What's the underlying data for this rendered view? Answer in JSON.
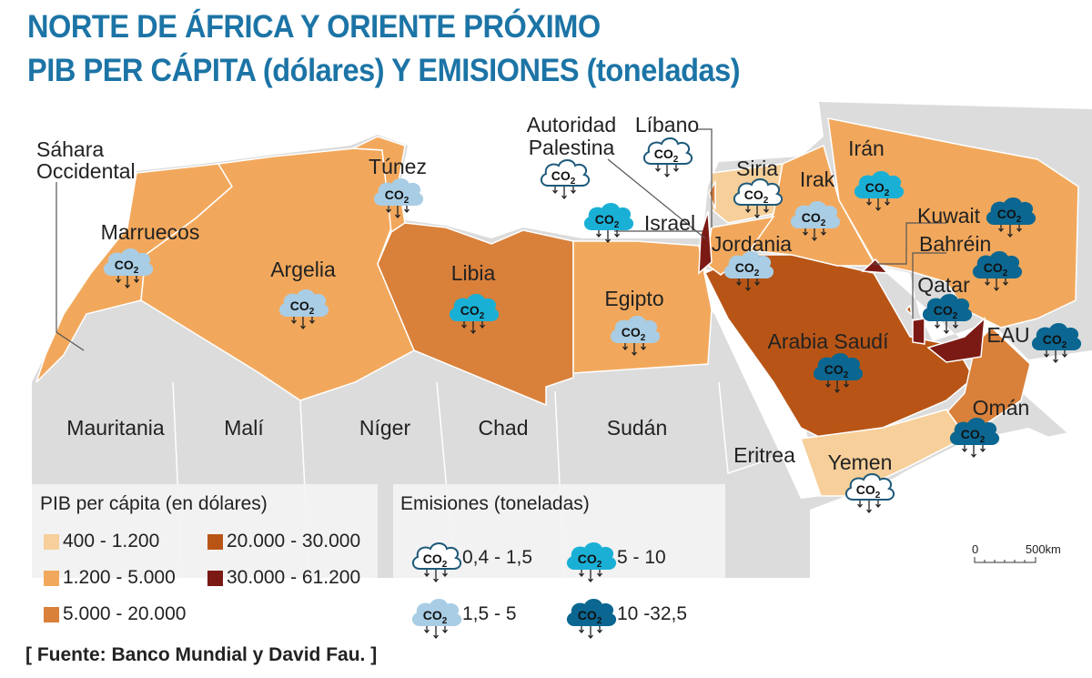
{
  "title": {
    "line1": "NORTE DE ÁFRICA Y ORIENTE PRÓXIMO",
    "line2": "PIB PER CÁPITA (dólares) Y EMISIONES (toneladas)"
  },
  "colors": {
    "title": "#1c74a6",
    "land": "#dcdcdc",
    "sea": "#ffffff"
  },
  "gdp_legend": {
    "title": "PIB per cápita (en dólares)",
    "classes": [
      {
        "label": "400 - 1.200",
        "color": "#f6cf9a"
      },
      {
        "label": "1.200 - 5.000",
        "color": "#f2a85c"
      },
      {
        "label": "5.000 - 20.000",
        "color": "#d9803a"
      },
      {
        "label": "20.000 - 30.000",
        "color": "#b85516"
      },
      {
        "label": "30.000 - 61.200",
        "color": "#7b1a14"
      }
    ]
  },
  "emission_legend": {
    "title": "Emisiones (toneladas)",
    "classes": [
      {
        "label": "0,4 - 1,5",
        "fill": "#ffffff",
        "stroke": "#1e5a7a"
      },
      {
        "label": "1,5 - 5",
        "fill": "#a9cde4",
        "stroke": "#a9cde4"
      },
      {
        "label": "5 - 10",
        "fill": "#1ab0d6",
        "stroke": "#1ab0d6"
      },
      {
        "label": "10 -32,5",
        "fill": "#0b6791",
        "stroke": "#0b6791"
      }
    ],
    "cloud_text": "CO",
    "cloud_sub": "2"
  },
  "countries": [
    {
      "id": "marruecos",
      "name": "Marruecos",
      "gdp": 1,
      "emission": 1
    },
    {
      "id": "argelia",
      "name": "Argelia",
      "gdp": 1,
      "emission": 1
    },
    {
      "id": "tunez",
      "name": "Túnez",
      "gdp": 1,
      "emission": 1
    },
    {
      "id": "libia",
      "name": "Libia",
      "gdp": 2,
      "emission": 2
    },
    {
      "id": "egipto",
      "name": "Egipto",
      "gdp": 1,
      "emission": 1
    },
    {
      "id": "palestina",
      "name": "Autoridad Palestina",
      "gdp": null,
      "emission": 0
    },
    {
      "id": "libano",
      "name": "Líbano",
      "gdp": 2,
      "emission": 0
    },
    {
      "id": "israel",
      "name": "Israel",
      "gdp": 4,
      "emission": 2
    },
    {
      "id": "siria",
      "name": "Siria",
      "gdp": 0,
      "emission": 0
    },
    {
      "id": "irak",
      "name": "Irak",
      "gdp": 1,
      "emission": 1
    },
    {
      "id": "iran",
      "name": "Irán",
      "gdp": 1,
      "emission": 2
    },
    {
      "id": "jordania",
      "name": "Jordania",
      "gdp": 1,
      "emission": 1
    },
    {
      "id": "kuwait",
      "name": "Kuwait",
      "gdp": 4,
      "emission": 3
    },
    {
      "id": "bahrein",
      "name": "Bahréin",
      "gdp": 3,
      "emission": 3
    },
    {
      "id": "qatar",
      "name": "Qatar",
      "gdp": 4,
      "emission": 3
    },
    {
      "id": "eau",
      "name": "EAU",
      "gdp": 4,
      "emission": 3
    },
    {
      "id": "arabia",
      "name": "Arabia Saudí",
      "gdp": 3,
      "emission": 3
    },
    {
      "id": "oman",
      "name": "Omán",
      "gdp": 2,
      "emission": 3
    },
    {
      "id": "yemen",
      "name": "Yemen",
      "gdp": 0,
      "emission": 0
    }
  ],
  "other_labels": [
    "Sáhara Occidental",
    "Mauritania",
    "Malí",
    "Níger",
    "Chad",
    "Sudán",
    "Eritrea"
  ],
  "scale": {
    "start": "0",
    "end": "500km"
  },
  "source": "[ Fuente: Banco Mundial y David Fau. ]"
}
